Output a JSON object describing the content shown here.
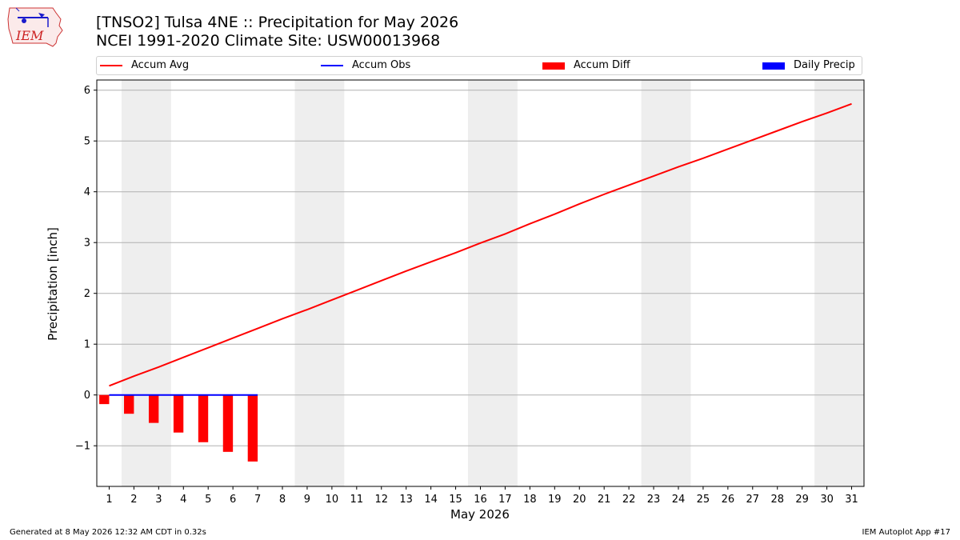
{
  "header": {
    "title_line1": "[TNSO2] Tulsa 4NE :: Precipitation for May 2026",
    "title_line2": "NCEI 1991-2020 Climate Site: USW00013968"
  },
  "logo": {
    "text": "IEM",
    "icon": "iem-iowa-logo-icon"
  },
  "legend": [
    {
      "label": "Accum Avg",
      "color": "#ff0000",
      "kind": "line"
    },
    {
      "label": "Accum Obs",
      "color": "#0000ff",
      "kind": "line"
    },
    {
      "label": "Accum Diff",
      "color": "#ff0000",
      "kind": "box"
    },
    {
      "label": "Daily Precip",
      "color": "#0000ff",
      "kind": "box"
    }
  ],
  "footer": {
    "left": "Generated at 8 May 2026 12:32 AM CDT in 0.32s",
    "right": "IEM Autoplot App #17"
  },
  "chart_data": {
    "type": "line",
    "xlabel": "May 2026",
    "ylabel": "Precipitation [inch]",
    "xlim": [
      0.5,
      31.5
    ],
    "ylim": [
      -1.8,
      6.2
    ],
    "x_ticks": [
      1,
      2,
      3,
      4,
      5,
      6,
      7,
      8,
      9,
      10,
      11,
      12,
      13,
      14,
      15,
      16,
      17,
      18,
      19,
      20,
      21,
      22,
      23,
      24,
      25,
      26,
      27,
      28,
      29,
      30,
      31
    ],
    "y_ticks": [
      -1,
      0,
      1,
      2,
      3,
      4,
      5,
      6
    ],
    "y_tick_labels": [
      "−1",
      "0",
      "1",
      "2",
      "3",
      "4",
      "5",
      "6"
    ],
    "grid": "y",
    "legend_position": "top",
    "weekend_shading": [
      [
        2,
        3
      ],
      [
        9,
        10
      ],
      [
        16,
        17
      ],
      [
        23,
        24
      ],
      [
        30,
        31
      ]
    ],
    "accum_avg": {
      "name": "Accum Avg",
      "x": [
        1,
        2,
        3,
        4,
        5,
        6,
        7,
        8,
        9,
        10,
        11,
        12,
        13,
        14,
        15,
        16,
        17,
        18,
        19,
        20,
        21,
        22,
        23,
        24,
        25,
        26,
        27,
        28,
        29,
        30,
        31
      ],
      "values": [
        0.18,
        0.37,
        0.55,
        0.74,
        0.93,
        1.12,
        1.31,
        1.5,
        1.68,
        1.87,
        2.06,
        2.25,
        2.44,
        2.62,
        2.8,
        2.99,
        3.17,
        3.37,
        3.56,
        3.76,
        3.95,
        4.13,
        4.31,
        4.49,
        4.66,
        4.84,
        5.02,
        5.2,
        5.38,
        5.55,
        5.73
      ]
    },
    "accum_obs": {
      "name": "Accum Obs",
      "x": [
        1,
        2,
        3,
        4,
        5,
        6,
        7
      ],
      "values": [
        0,
        0,
        0,
        0,
        0,
        0,
        0
      ]
    },
    "accum_diff": {
      "name": "Accum Diff",
      "x": [
        1,
        2,
        3,
        4,
        5,
        6,
        7
      ],
      "values": [
        -0.18,
        -0.37,
        -0.55,
        -0.74,
        -0.93,
        -1.12,
        -1.31
      ]
    },
    "daily_precip": {
      "name": "Daily Precip",
      "x": [
        1,
        2,
        3,
        4,
        5,
        6,
        7
      ],
      "values": [
        0,
        0,
        0,
        0,
        0,
        0,
        0
      ]
    }
  }
}
